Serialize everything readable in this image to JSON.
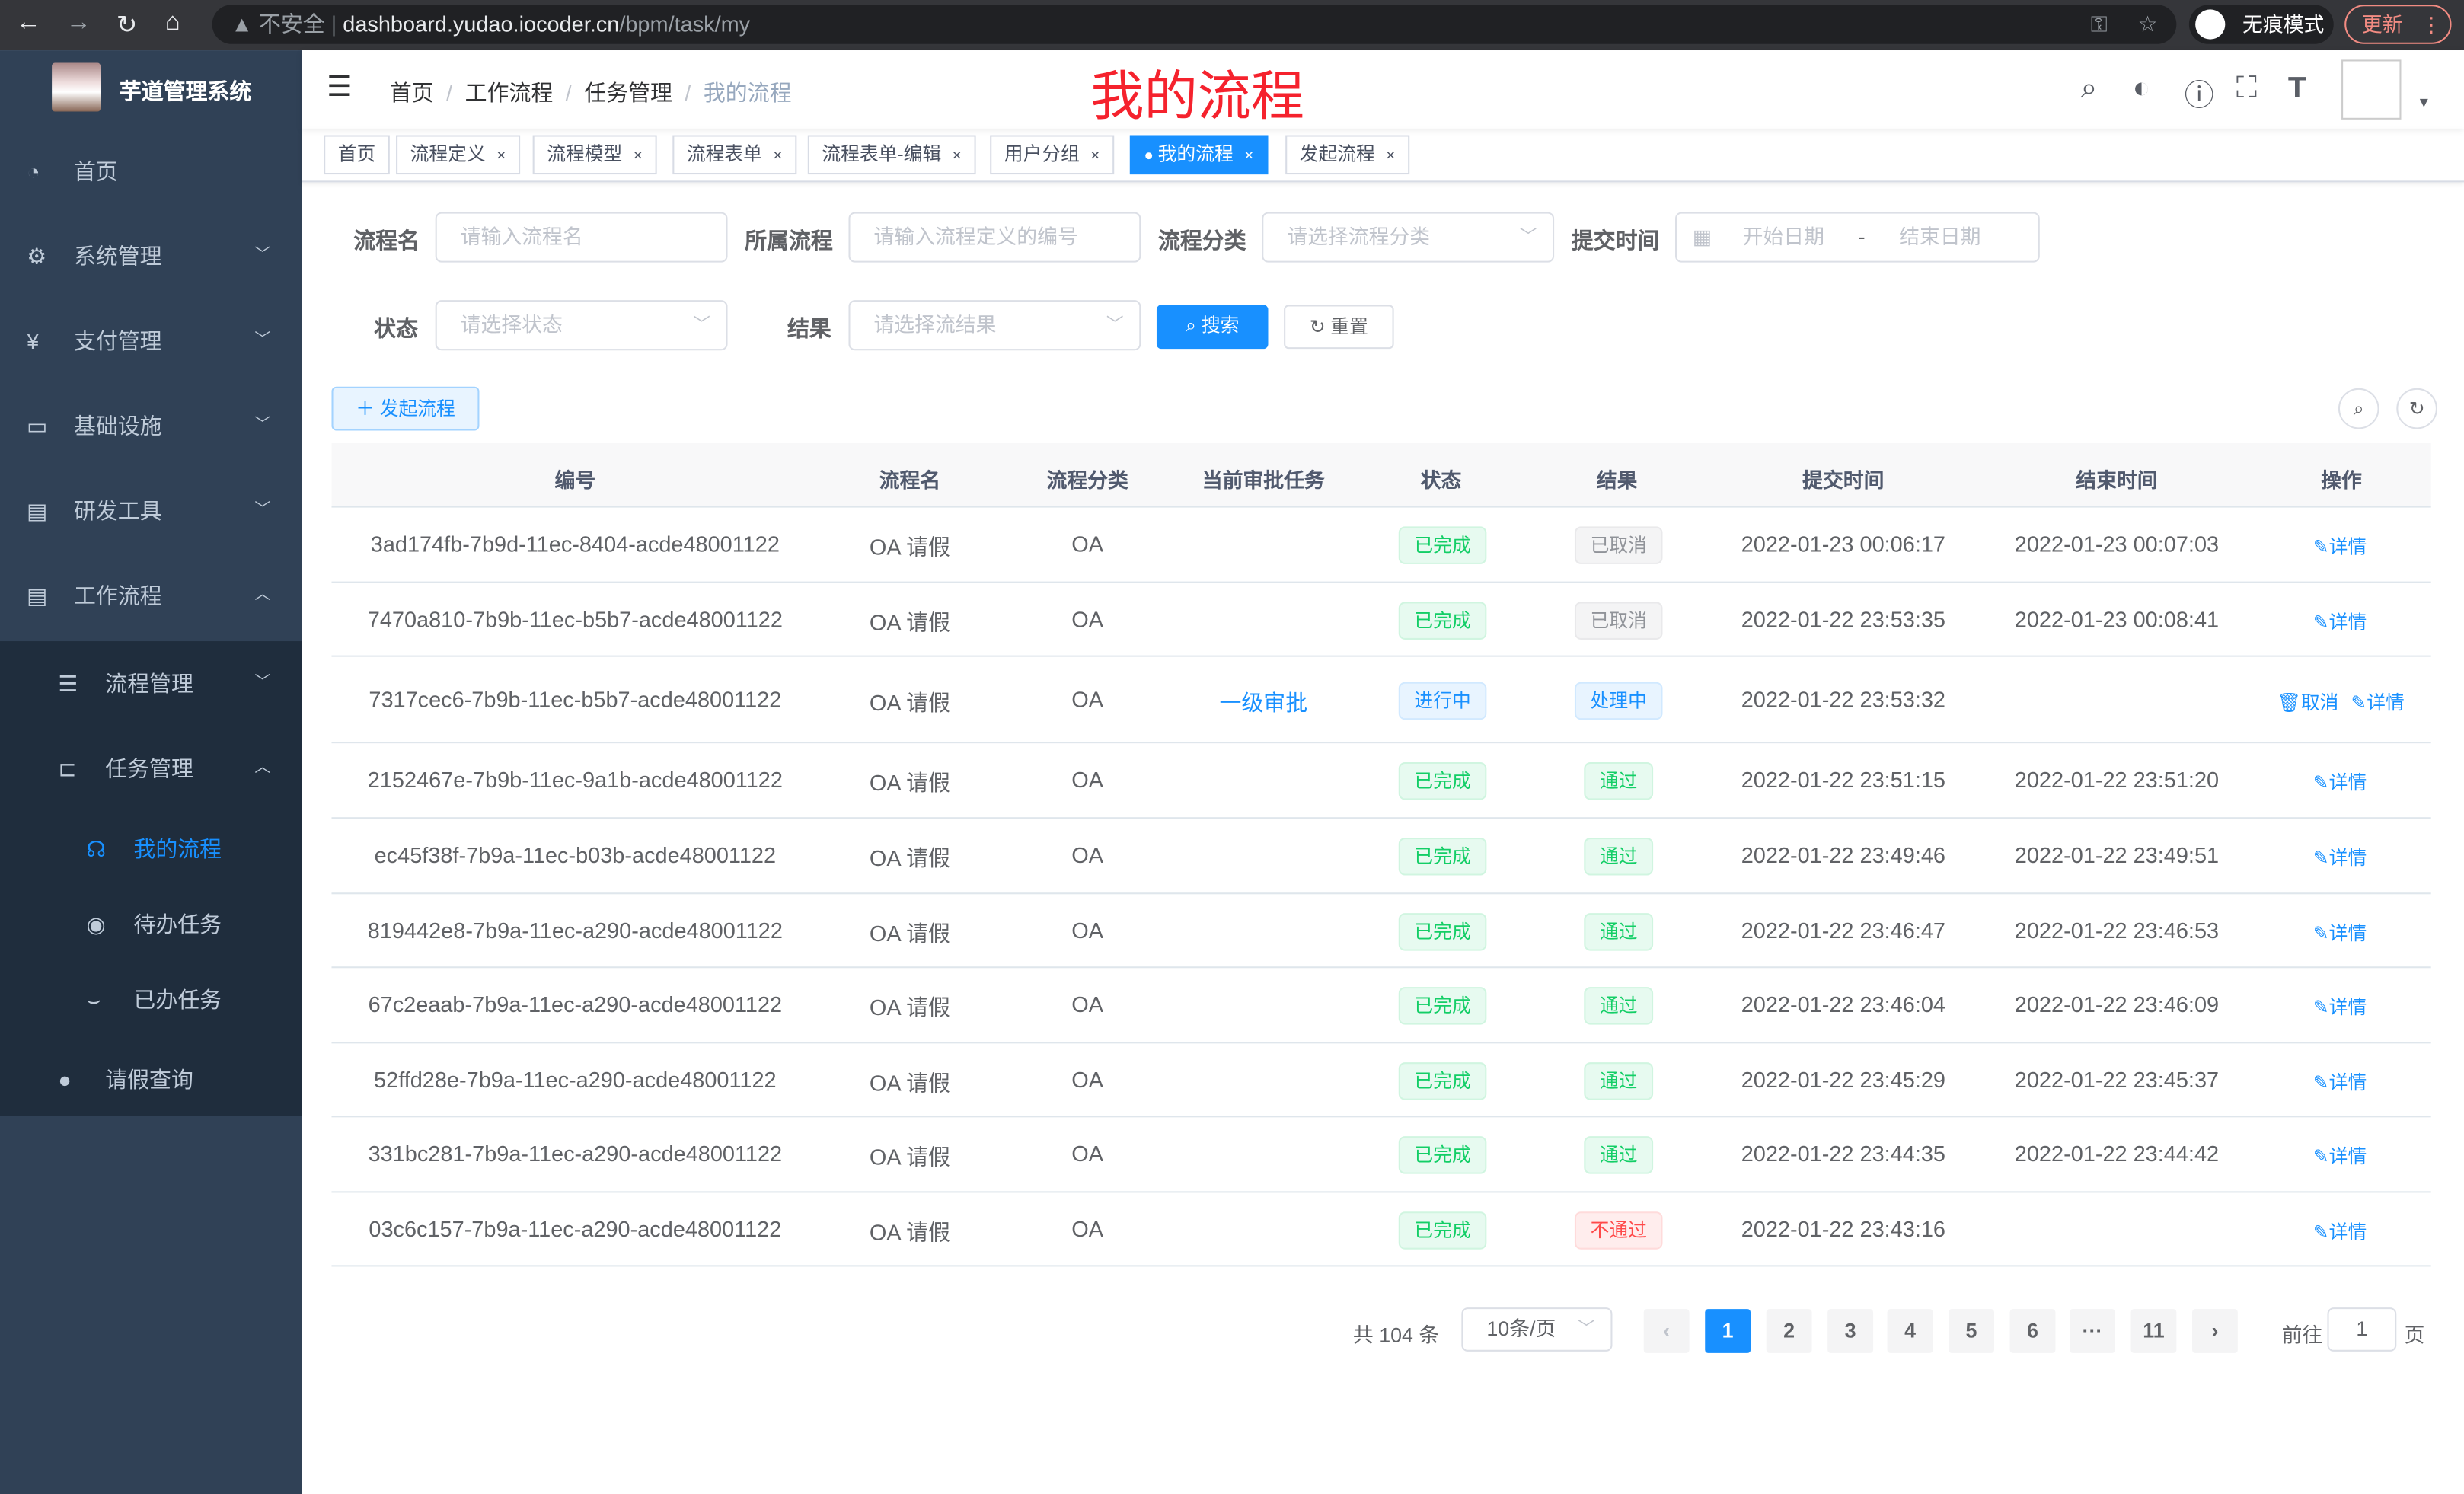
{
  "browser": {
    "security": "不安全",
    "url_host": "dashboard.yudao.iocoder.cn",
    "url_path": "/bpm/task/my",
    "incognito": "无痕模式",
    "update": "更新"
  },
  "sidebar": {
    "brand": "芋道管理系统",
    "items": [
      {
        "label": "首页",
        "icon": "dashboard-icon"
      },
      {
        "label": "系统管理",
        "icon": "gear-icon"
      },
      {
        "label": "支付管理",
        "icon": "yen-icon"
      },
      {
        "label": "基础设施",
        "icon": "monitor-icon"
      },
      {
        "label": "研发工具",
        "icon": "toolbox-icon"
      },
      {
        "label": "工作流程",
        "icon": "toolbox-icon"
      },
      {
        "label": "流程管理",
        "icon": "list-icon"
      },
      {
        "label": "任务管理",
        "icon": "tree-icon"
      },
      {
        "label": "我的流程",
        "icon": "headset-icon"
      },
      {
        "label": "待办任务",
        "icon": "eye-icon"
      },
      {
        "label": "已办任务",
        "icon": "eye-closed-icon"
      },
      {
        "label": "请假查询",
        "icon": "user-icon"
      }
    ]
  },
  "header": {
    "breadcrumb": [
      "首页",
      "工作流程",
      "任务管理",
      "我的流程"
    ],
    "page_title": "我的流程"
  },
  "tabs": [
    "首页",
    "流程定义",
    "流程模型",
    "流程表单",
    "流程表单-编辑",
    "用户分组",
    "我的流程",
    "发起流程"
  ],
  "filters": {
    "name_label": "流程名",
    "name_placeholder": "请输入流程名",
    "def_label": "所属流程",
    "def_placeholder": "请输入流程定义的编号",
    "cat_label": "流程分类",
    "cat_placeholder": "请选择流程分类",
    "time_label": "提交时间",
    "start_placeholder": "开始日期",
    "end_placeholder": "结束日期",
    "range_sep": "-",
    "status_label": "状态",
    "status_placeholder": "请选择状态",
    "result_label": "结果",
    "result_placeholder": "请选择流结果",
    "search": "搜索",
    "reset": "重置"
  },
  "toolbar": {
    "start": "发起流程"
  },
  "table": {
    "columns": [
      "编号",
      "流程名",
      "流程分类",
      "当前审批任务",
      "状态",
      "结果",
      "提交时间",
      "结束时间",
      "操作"
    ],
    "rows": [
      {
        "id": "3ad174fb-7b9d-11ec-8404-acde48001122",
        "name": "OA 请假",
        "cat": "OA",
        "task": "",
        "status": "已完成",
        "result": "已取消",
        "submit": "2022-01-23 00:06:17",
        "end": "2022-01-23 00:07:03"
      },
      {
        "id": "7470a810-7b9b-11ec-b5b7-acde48001122",
        "name": "OA 请假",
        "cat": "OA",
        "task": "",
        "status": "已完成",
        "result": "已取消",
        "submit": "2022-01-22 23:53:35",
        "end": "2022-01-23 00:08:41"
      },
      {
        "id": "7317cec6-7b9b-11ec-b5b7-acde48001122",
        "name": "OA 请假",
        "cat": "OA",
        "task": "一级审批",
        "status": "进行中",
        "result": "处理中",
        "submit": "2022-01-22 23:53:32",
        "end": ""
      },
      {
        "id": "2152467e-7b9b-11ec-9a1b-acde48001122",
        "name": "OA 请假",
        "cat": "OA",
        "task": "",
        "status": "已完成",
        "result": "通过",
        "submit": "2022-01-22 23:51:15",
        "end": "2022-01-22 23:51:20"
      },
      {
        "id": "ec45f38f-7b9a-11ec-b03b-acde48001122",
        "name": "OA 请假",
        "cat": "OA",
        "task": "",
        "status": "已完成",
        "result": "通过",
        "submit": "2022-01-22 23:49:46",
        "end": "2022-01-22 23:49:51"
      },
      {
        "id": "819442e8-7b9a-11ec-a290-acde48001122",
        "name": "OA 请假",
        "cat": "OA",
        "task": "",
        "status": "已完成",
        "result": "通过",
        "submit": "2022-01-22 23:46:47",
        "end": "2022-01-22 23:46:53"
      },
      {
        "id": "67c2eaab-7b9a-11ec-a290-acde48001122",
        "name": "OA 请假",
        "cat": "OA",
        "task": "",
        "status": "已完成",
        "result": "通过",
        "submit": "2022-01-22 23:46:04",
        "end": "2022-01-22 23:46:09"
      },
      {
        "id": "52ffd28e-7b9a-11ec-a290-acde48001122",
        "name": "OA 请假",
        "cat": "OA",
        "task": "",
        "status": "已完成",
        "result": "通过",
        "submit": "2022-01-22 23:45:29",
        "end": "2022-01-22 23:45:37"
      },
      {
        "id": "331bc281-7b9a-11ec-a290-acde48001122",
        "name": "OA 请假",
        "cat": "OA",
        "task": "",
        "status": "已完成",
        "result": "通过",
        "submit": "2022-01-22 23:44:35",
        "end": "2022-01-22 23:44:42"
      },
      {
        "id": "03c6c157-7b9a-11ec-a290-acde48001122",
        "name": "OA 请假",
        "cat": "OA",
        "task": "",
        "status": "已完成",
        "result": "不通过",
        "submit": "2022-01-22 23:43:16",
        "end": ""
      }
    ],
    "action_detail": "详情",
    "action_cancel": "取消"
  },
  "pagination": {
    "total": "共 104 条",
    "page_size": "10条/页",
    "pages": [
      "1",
      "2",
      "3",
      "4",
      "5",
      "6",
      "···",
      "11"
    ],
    "current": "1",
    "goto_label": "前往",
    "goto_value": "1",
    "goto_suffix": "页"
  },
  "colors": {
    "primary": "#1890ff",
    "sidebar": "#304156",
    "title": "#f5222d",
    "success": "#13ce66",
    "danger": "#ff4949"
  }
}
